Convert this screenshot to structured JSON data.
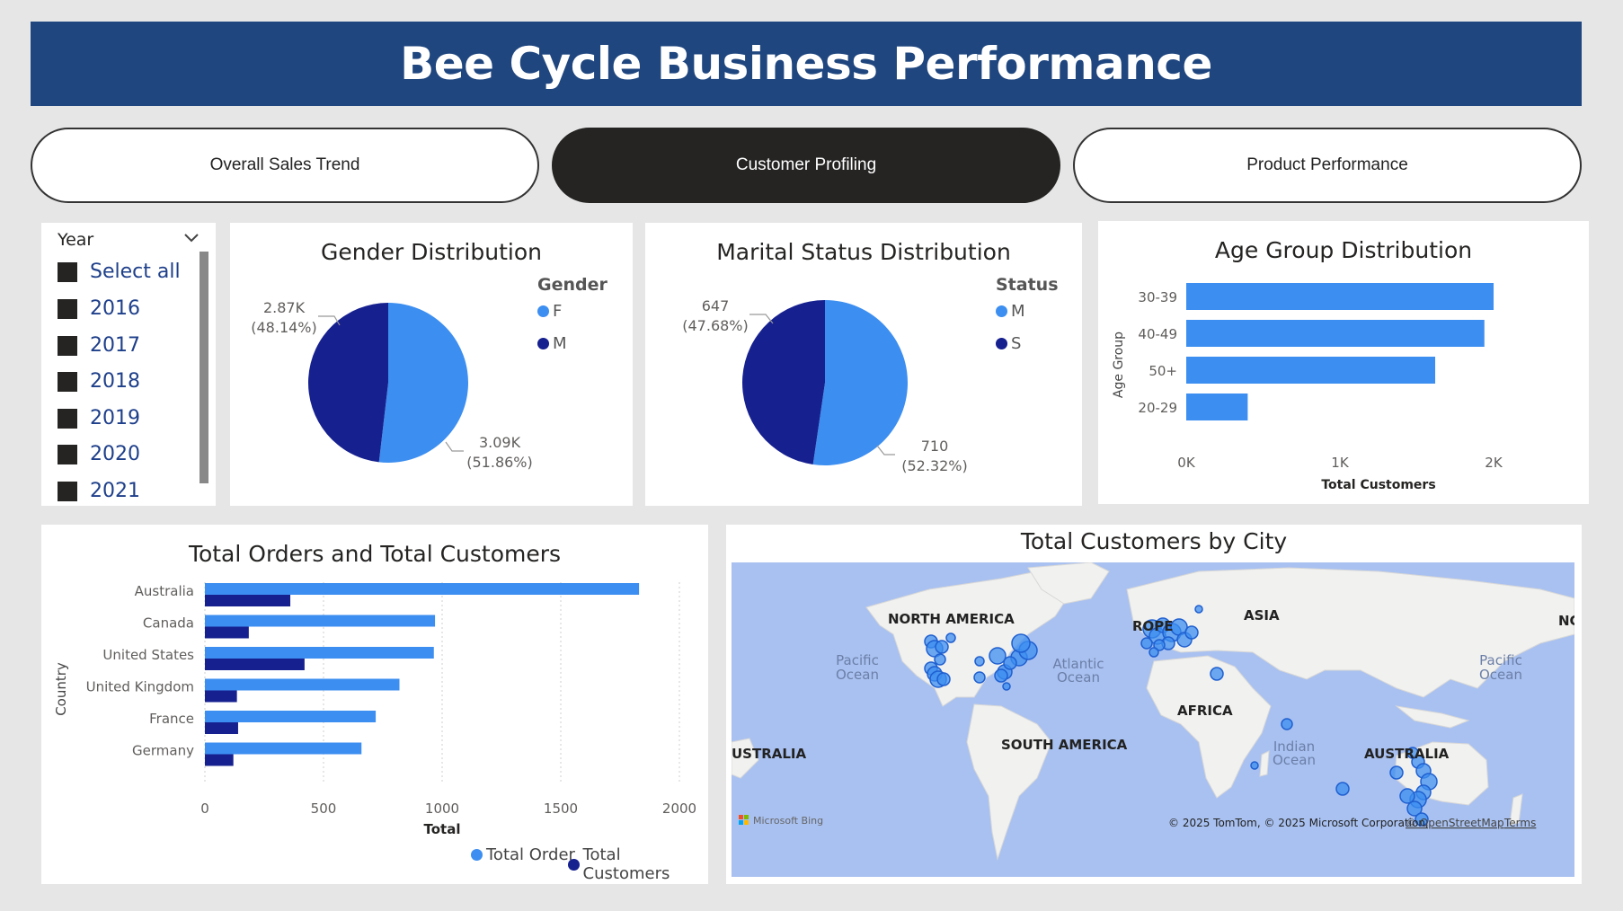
{
  "header": {
    "title": "Bee Cycle Business Performance"
  },
  "nav": {
    "buttons": [
      {
        "label": "Overall Sales Trend",
        "active": false
      },
      {
        "label": "Customer Profiling",
        "active": true
      },
      {
        "label": "Product Performance",
        "active": false
      }
    ]
  },
  "slicer": {
    "title": "Year",
    "items": [
      "Select all",
      "2016",
      "2017",
      "2018",
      "2019",
      "2020",
      "2021"
    ]
  },
  "gender": {
    "title": "Gender Distribution",
    "legend_title": "Gender",
    "legend": [
      "F",
      "M"
    ],
    "label_m": "2.87K",
    "label_m_pct": "(48.14%)",
    "label_f": "3.09K",
    "label_f_pct": "(51.86%)"
  },
  "marital": {
    "title": "Marital Status Distribution",
    "legend_title": "Status",
    "legend": [
      "M",
      "S"
    ],
    "label_s": "647",
    "label_s_pct": "(47.68%)",
    "label_m": "710",
    "label_m_pct": "(52.32%)"
  },
  "age": {
    "title": "Age Group Distribution",
    "ylabel": "Age Group",
    "xlabel": "Total Customers"
  },
  "orders": {
    "title": "Total Orders and Total Customers",
    "ylabel": "Country",
    "xlabel": "Total",
    "legend": [
      "Total Order",
      "Total Customers"
    ]
  },
  "map": {
    "title": "Total Customers by City",
    "labels": {
      "north_america": "NORTH AMERICA",
      "europe": "ROPE",
      "asia": "ASIA",
      "nc": "NC",
      "africa": "AFRICA",
      "south_america": "SOUTH AMERICA",
      "australia": "AUSTRALIA",
      "australia_left": "USTRALIA",
      "pacific_l1": "Pacific",
      "pacific_l2": "Ocean",
      "atlantic_l1": "Atlantic",
      "atlantic_l2": "Ocean",
      "pacific_r1": "Pacific",
      "pacific_r2": "Ocean",
      "indian_l1": "Indian",
      "indian_l2": "Ocean"
    },
    "attribution": "© 2025 TomTom, © 2025 Microsoft Corporation,",
    "osm": "© OpenStreetMap",
    "terms": "Terms",
    "bing": "Microsoft Bing"
  },
  "colors": {
    "header": "#1f467f",
    "light_blue": "#3c8ef0",
    "dark_blue": "#16208f",
    "map_water": "#a9c1f0",
    "map_land": "#f1f1ef"
  },
  "chart_data": [
    {
      "type": "pie",
      "title": "Gender Distribution",
      "categories": [
        "F",
        "M"
      ],
      "values": [
        3090,
        2870
      ],
      "percent": [
        51.86,
        48.14
      ]
    },
    {
      "type": "pie",
      "title": "Marital Status Distribution",
      "categories": [
        "M",
        "S"
      ],
      "values": [
        710,
        647
      ],
      "percent": [
        52.32,
        47.68
      ]
    },
    {
      "type": "bar",
      "orientation": "horizontal",
      "title": "Age Group Distribution",
      "categories": [
        "30-39",
        "40-49",
        "50+",
        "20-29"
      ],
      "values": [
        2000,
        1940,
        1620,
        400
      ],
      "xlim": [
        0,
        2000
      ],
      "xticks": [
        "0K",
        "1K",
        "2K"
      ],
      "xlabel": "Total Customers",
      "ylabel": "Age Group"
    },
    {
      "type": "bar",
      "orientation": "horizontal",
      "title": "Total Orders and Total Customers",
      "categories": [
        "Australia",
        "Canada",
        "United States",
        "United Kingdom",
        "France",
        "Germany"
      ],
      "series": [
        {
          "name": "Total Order",
          "values": [
            1830,
            970,
            965,
            820,
            720,
            660
          ]
        },
        {
          "name": "Total Customers",
          "values": [
            360,
            185,
            420,
            135,
            140,
            120
          ]
        }
      ],
      "xlim": [
        0,
        2000
      ],
      "xticks": [
        "0",
        "500",
        "1000",
        "1500",
        "2000"
      ],
      "xlabel": "Total",
      "ylabel": "Country"
    }
  ]
}
